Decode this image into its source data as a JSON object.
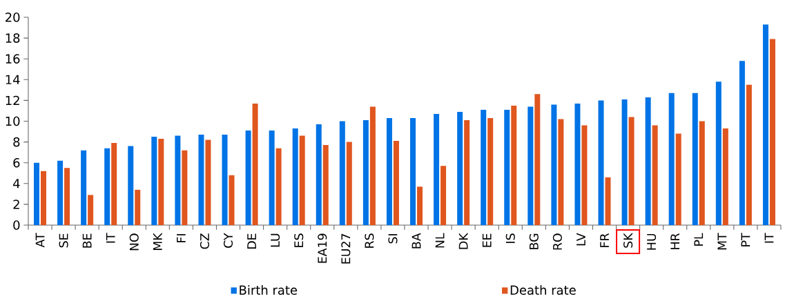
{
  "chart_data": {
    "type": "bar",
    "categories": [
      "AT",
      "SE",
      "BE",
      "IT",
      "NO",
      "MK",
      "FI",
      "CZ",
      "CY",
      "DE",
      "LU",
      "ES",
      "EA19",
      "EU27",
      "RS",
      "SI",
      "BA",
      "NL",
      "DK",
      "EE",
      "IS",
      "BG",
      "RO",
      "LV",
      "FR",
      "SK",
      "HU",
      "HR",
      "PL",
      "MT",
      "PT",
      "IT"
    ],
    "series": [
      {
        "name": "Birth rate",
        "color": "#0073e6",
        "values": [
          6.0,
          6.2,
          7.2,
          7.4,
          7.6,
          8.5,
          8.6,
          8.7,
          8.7,
          9.1,
          9.1,
          9.3,
          9.7,
          10.0,
          10.1,
          10.3,
          10.3,
          10.7,
          10.9,
          11.1,
          11.1,
          11.4,
          11.6,
          11.7,
          12.0,
          12.1,
          12.3,
          12.7,
          12.7,
          13.8,
          15.8,
          19.3
        ]
      },
      {
        "name": "Death rate",
        "color": "#e0561f",
        "values": [
          5.2,
          5.5,
          2.9,
          7.9,
          3.4,
          8.3,
          7.2,
          8.2,
          4.8,
          11.7,
          7.4,
          8.6,
          7.7,
          8.0,
          11.4,
          8.1,
          3.7,
          5.7,
          10.1,
          10.3,
          11.5,
          12.6,
          10.2,
          9.6,
          4.6,
          10.4,
          9.6,
          8.8,
          10.0,
          9.3,
          13.5,
          17.9
        ]
      }
    ],
    "ylim": [
      0,
      20
    ],
    "yticks": [
      0,
      2,
      4,
      6,
      8,
      10,
      12,
      14,
      16,
      18,
      20
    ],
    "legend": "bottom"
  }
}
